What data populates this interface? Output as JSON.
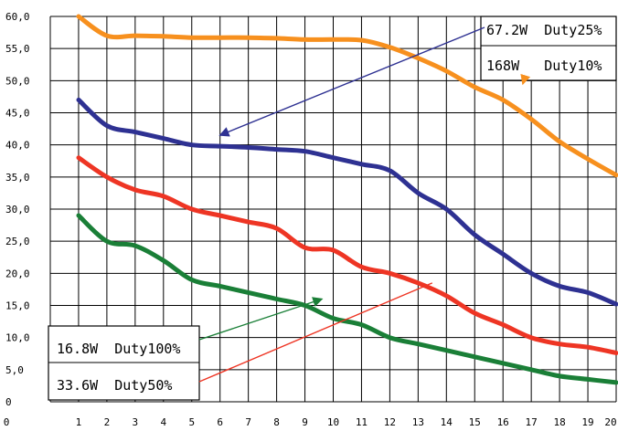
{
  "chart_data": {
    "type": "line",
    "title": "",
    "xlabel": "",
    "ylabel": "",
    "xlim": [
      0,
      20
    ],
    "ylim": [
      0,
      60
    ],
    "grid": true,
    "x_ticks": [
      "0",
      "1",
      "2",
      "3",
      "4",
      "5",
      "6",
      "7",
      "8",
      "9",
      "10",
      "11",
      "12",
      "13",
      "14",
      "15",
      "16",
      "17",
      "18",
      "19",
      "20"
    ],
    "y_ticks": [
      "0",
      "5,0",
      "10,0",
      "15,0",
      "20,0",
      "25,0",
      "30,0",
      "35,0",
      "40,0",
      "45,0",
      "50,0",
      "55,0",
      "60,0"
    ],
    "x": [
      1,
      2,
      3,
      4,
      5,
      6,
      7,
      8,
      9,
      10,
      11,
      12,
      13,
      14,
      15,
      16,
      17,
      18,
      19,
      20
    ],
    "series": [
      {
        "name": "168W Duty10%",
        "color": "#f7901e",
        "values": [
          60.0,
          57.0,
          57.0,
          56.9,
          56.7,
          56.7,
          56.7,
          56.6,
          56.4,
          56.4,
          56.3,
          55.2,
          53.5,
          51.5,
          49.0,
          47.0,
          44.0,
          40.5,
          37.8,
          35.3
        ]
      },
      {
        "name": "67.2W Duty25%",
        "color": "#2e3192",
        "values": [
          47.0,
          43.0,
          42.0,
          41.0,
          40.0,
          39.8,
          39.6,
          39.3,
          39.0,
          38.0,
          37.0,
          36.0,
          32.5,
          30.0,
          26.0,
          23.0,
          20.0,
          18.0,
          17.0,
          15.2
        ]
      },
      {
        "name": "33.6W Duty50%",
        "color": "#ee3524",
        "values": [
          38.0,
          35.0,
          33.0,
          32.0,
          30.0,
          29.0,
          28.0,
          27.0,
          24.0,
          23.6,
          21.0,
          20.0,
          18.5,
          16.5,
          13.8,
          12.0,
          10.0,
          9.0,
          8.5,
          7.6
        ]
      },
      {
        "name": "16.8W Duty100%",
        "color": "#1a7f37",
        "values": [
          29.0,
          25.0,
          24.3,
          22.0,
          19.0,
          18.0,
          17.0,
          16.0,
          15.0,
          13.0,
          12.0,
          10.0,
          9.0,
          8.0,
          7.0,
          6.0,
          5.0,
          4.0,
          3.5,
          3.0
        ]
      }
    ],
    "annotations": [
      {
        "text": "67.2W  Duty25%",
        "series": "67.2W Duty25%",
        "arrow_color": "#2e3192",
        "arrow_to": [
          6,
          41.5
        ]
      },
      {
        "text": "168W   Duty10%",
        "series": "168W Duty10%",
        "arrow_color": "#f7901e",
        "arrow_to": [
          16.7,
          49.5
        ]
      },
      {
        "text": "16.8W  Duty100%",
        "series": "16.8W Duty100%",
        "arrow_color": "#1a7f37",
        "arrow_to": [
          9.6,
          16.0
        ]
      },
      {
        "text": "33.6W  Duty50%",
        "series": "33.6W Duty50%",
        "arrow_color": "#ee3524",
        "arrow_to": [
          13.5,
          18.5
        ]
      }
    ]
  }
}
